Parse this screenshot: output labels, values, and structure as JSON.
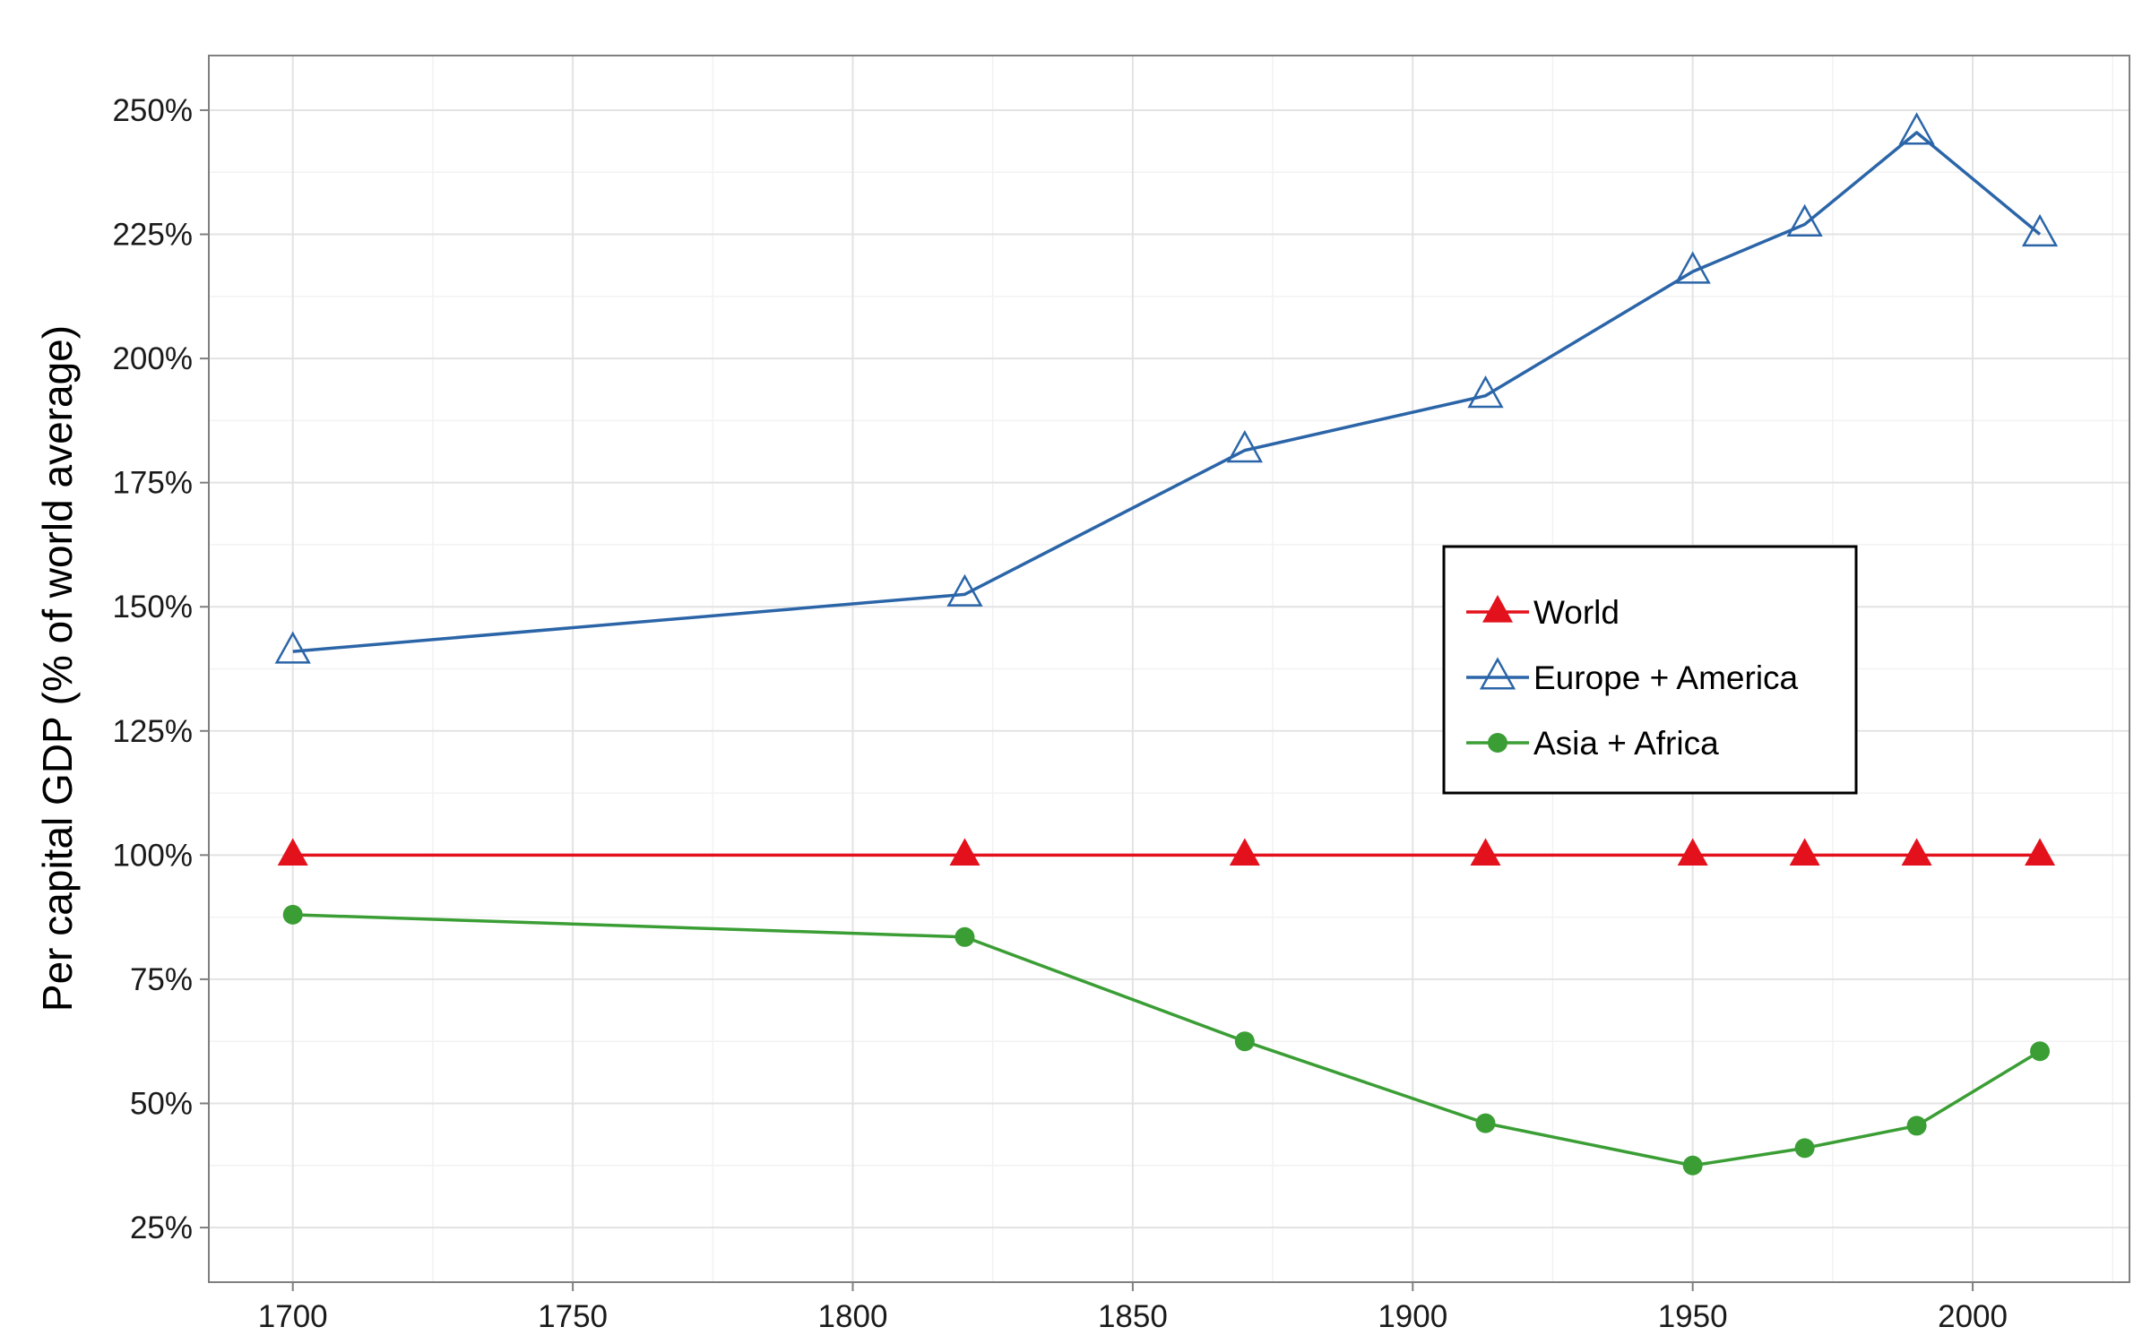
{
  "chart_data": {
    "type": "line",
    "title": "",
    "xlabel": "",
    "ylabel": "Per capital GDP (% of world average)",
    "x": [
      1700,
      1820,
      1870,
      1913,
      1950,
      1970,
      1990,
      2012
    ],
    "xlim": [
      1685,
      2028
    ],
    "ylim": [
      14,
      261
    ],
    "x_ticks": [
      1700,
      1750,
      1800,
      1850,
      1900,
      1950,
      2000
    ],
    "x_tick_labels": [
      "1700",
      "1750",
      "1800",
      "1850",
      "1900",
      "1950",
      "2000"
    ],
    "y_ticks": [
      25,
      50,
      75,
      100,
      125,
      150,
      175,
      200,
      225,
      250
    ],
    "y_tick_labels": [
      "25%",
      "50%",
      "75%",
      "100%",
      "125%",
      "150%",
      "175%",
      "200%",
      "225%",
      "250%"
    ],
    "grid": true,
    "legend_position": "center-right",
    "series": [
      {
        "name": "World",
        "values": [
          100,
          100,
          100,
          100,
          100,
          100,
          100,
          100
        ],
        "color": "#e3111b",
        "marker": "triangle-filled"
      },
      {
        "name": "Europe + America",
        "values": [
          141,
          152.5,
          181.5,
          192.5,
          217.5,
          227,
          245.5,
          225
        ],
        "color": "#2b65a8",
        "marker": "triangle-open"
      },
      {
        "name": "Asia + Africa",
        "values": [
          88,
          83.5,
          62.5,
          46,
          37.5,
          41,
          45.5,
          60.5
        ],
        "color": "#3b9e35",
        "marker": "circle-filled"
      }
    ]
  }
}
